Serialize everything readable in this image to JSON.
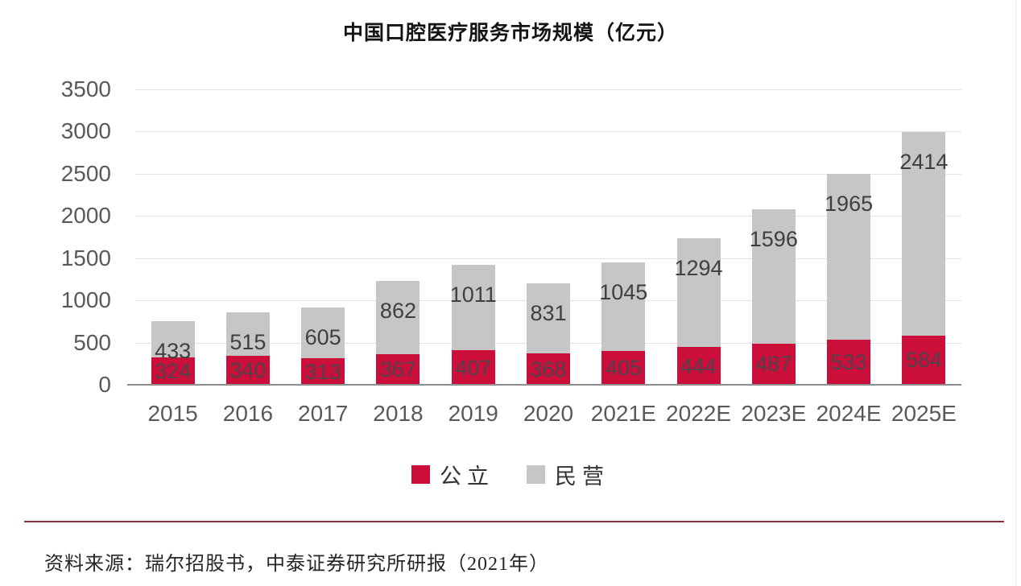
{
  "title": "中国口腔医疗服务市场规模（亿元）",
  "source_note": "资料来源：瑞尔招股书，中泰证券研究所研报（2021年）",
  "colors": {
    "public_red": "#cb0e3a",
    "private_gray": "#c6c6c6",
    "divider_red": "#8c313b",
    "gridline": "#e2e2e2",
    "baseline": "#8f8f8f",
    "axis_text": "#595959",
    "label_text": "#3f3f3f"
  },
  "legend": {
    "items": [
      {
        "label": "公立",
        "color": "#cb0e3a"
      },
      {
        "label": "民营",
        "color": "#c6c6c6"
      }
    ]
  },
  "chart_data": {
    "type": "bar",
    "stacked": true,
    "title": "中国口腔医疗服务市场规模（亿元）",
    "categories": [
      "2015",
      "2016",
      "2017",
      "2018",
      "2019",
      "2020",
      "2021E",
      "2022E",
      "2023E",
      "2024E",
      "2025E"
    ],
    "series": [
      {
        "name": "公立",
        "color": "#cb0e3a",
        "values": [
          324,
          340,
          313,
          367,
          407,
          368,
          405,
          444,
          487,
          533,
          584
        ]
      },
      {
        "name": "民营",
        "color": "#c6c6c6",
        "values": [
          433,
          515,
          605,
          862,
          1011,
          831,
          1045,
          1294,
          1596,
          1965,
          2414
        ]
      }
    ],
    "ylim": [
      0,
      3500
    ],
    "y_ticks": [
      0,
      500,
      1000,
      1500,
      2000,
      2500,
      3000,
      3500
    ],
    "grid": "horizontal",
    "legend_position": "bottom",
    "data_labels": true
  }
}
